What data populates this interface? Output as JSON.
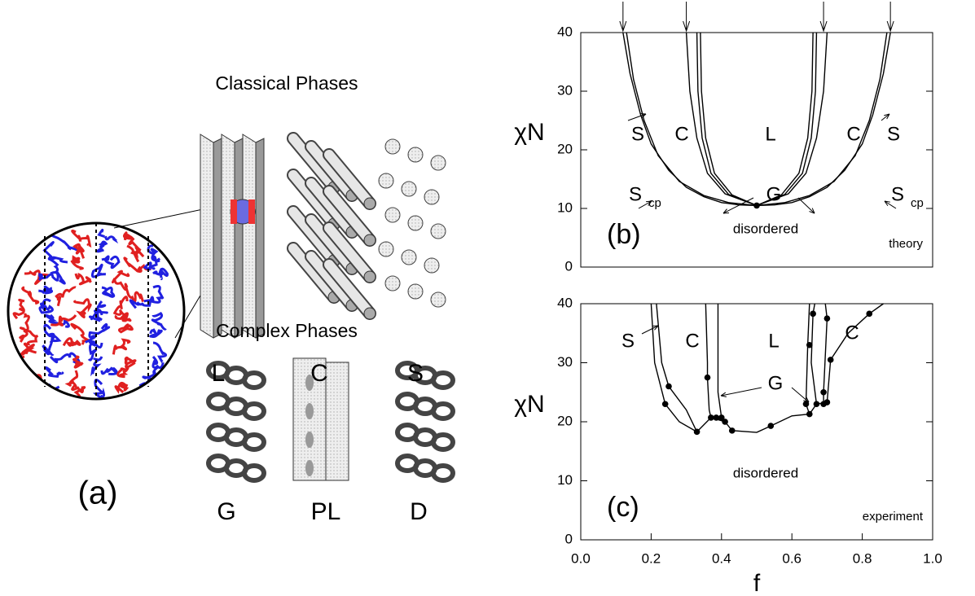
{
  "panel_a": {
    "label": "(a)",
    "classical_title": "Classical Phases",
    "complex_title": "Complex Phases",
    "classical": [
      "L",
      "C",
      "S"
    ],
    "complex": [
      "G",
      "PL",
      "D"
    ]
  },
  "chart_data": [
    {
      "type": "line",
      "panel_label": "(b)",
      "note": "theory",
      "ylabel": "χN",
      "xlim": [
        0,
        1
      ],
      "ylim": [
        0,
        40
      ],
      "yticks": [
        0,
        10,
        20,
        30,
        40
      ],
      "annotations": [
        {
          "text": "S"
        },
        {
          "text": "C"
        },
        {
          "text": "L"
        },
        {
          "text": "C"
        },
        {
          "text": "S"
        },
        {
          "text": "S",
          "sub": "cp"
        },
        {
          "text": "G"
        },
        {
          "text": "S",
          "sub": "cp"
        },
        {
          "text": "disordered"
        }
      ],
      "arrows": {
        "x": [
          0.12,
          0.3,
          0.69,
          0.88
        ]
      },
      "series": [
        {
          "color": "#000000",
          "x": [
            0.12,
            0.14,
            0.17,
            0.2,
            0.25,
            0.3,
            0.35,
            0.4,
            0.45,
            0.5,
            0.55,
            0.6,
            0.65,
            0.7,
            0.75,
            0.8,
            0.83,
            0.86,
            0.88
          ],
          "values": [
            40,
            33,
            26,
            21,
            16.5,
            13.6,
            12,
            11,
            10.6,
            10.5,
            10.6,
            11,
            12,
            13.6,
            16.5,
            21,
            26,
            33,
            40
          ]
        },
        {
          "color": "#000000",
          "x": [
            0.13,
            0.15,
            0.18,
            0.22,
            0.28,
            0.35,
            0.42,
            0.5,
            0.58,
            0.65,
            0.72,
            0.78,
            0.82,
            0.85,
            0.87
          ],
          "values": [
            40,
            32,
            25,
            19,
            14.6,
            12.2,
            11,
            10.5,
            11,
            12.2,
            14.6,
            19,
            25,
            32,
            40
          ]
        },
        {
          "color": "#000000",
          "x": [
            0.3,
            0.31,
            0.33,
            0.36,
            0.41,
            0.5,
            0.59,
            0.64,
            0.67,
            0.69,
            0.7
          ],
          "values": [
            40,
            30,
            22,
            16,
            12.5,
            10.5,
            12.5,
            16,
            22,
            30,
            40
          ]
        },
        {
          "color": "#000000",
          "x": [
            0.33,
            0.333,
            0.345,
            0.37,
            0.42,
            0.5,
            0.58,
            0.63,
            0.655,
            0.667,
            0.67
          ],
          "values": [
            40,
            30,
            22,
            16,
            12.4,
            10.5,
            12.4,
            16,
            22,
            30,
            40
          ]
        },
        {
          "color": "#000000",
          "x": [
            0.34,
            0.343,
            0.355,
            0.38,
            0.43,
            0.5,
            0.57,
            0.62,
            0.645,
            0.657,
            0.66
          ],
          "values": [
            40,
            30,
            22,
            16,
            12.3,
            10.5,
            12.3,
            16,
            22,
            30,
            40
          ]
        }
      ],
      "points": {
        "x": [
          0.5
        ],
        "values": [
          10.5
        ]
      }
    },
    {
      "type": "line",
      "panel_label": "(c)",
      "note": "experiment",
      "ylabel": "χN",
      "xlabel": "f",
      "xlim": [
        0,
        1
      ],
      "ylim": [
        0,
        40
      ],
      "yticks": [
        0,
        10,
        20,
        30,
        40
      ],
      "xticks": [
        {
          "value": 0,
          "label": "0.0"
        },
        0.2,
        0.4,
        0.6,
        0.8,
        {
          "value": 1,
          "label": "1.0"
        }
      ],
      "annotations": [
        {
          "text": "S"
        },
        {
          "text": "C"
        },
        {
          "text": "L"
        },
        {
          "text": "C"
        },
        {
          "text": "G"
        },
        {
          "text": "disordered"
        }
      ],
      "series": [
        {
          "color": "#000000",
          "x": [
            0.2,
            0.21,
            0.24,
            0.28,
            0.33,
            0.37,
            0.41,
            0.43,
            0.5,
            0.54,
            0.6,
            0.65,
            0.67,
            0.7,
            0.71,
            0.76,
            0.82,
            0.86
          ],
          "values": [
            40,
            30,
            23,
            20,
            18.3,
            20.7,
            20,
            18.5,
            18.2,
            19.3,
            21,
            21.3,
            23,
            23.3,
            30.5,
            35,
            38.3,
            40
          ]
        },
        {
          "color": "#000000",
          "x": [
            0.215,
            0.23,
            0.25,
            0.3,
            0.33
          ],
          "values": [
            40,
            30,
            26,
            22,
            18.3
          ]
        },
        {
          "color": "#000000",
          "x": [
            0.355,
            0.36,
            0.36,
            0.365,
            0.37
          ],
          "values": [
            40,
            30,
            27.5,
            22,
            20.7
          ]
        },
        {
          "color": "#000000",
          "x": [
            0.39,
            0.39,
            0.4
          ],
          "values": [
            40,
            25,
            20.7
          ]
        },
        {
          "color": "#000000",
          "x": [
            0.65,
            0.645,
            0.64,
            0.65
          ],
          "values": [
            40,
            33,
            23,
            21.3
          ]
        },
        {
          "color": "#000000",
          "x": [
            0.665,
            0.66,
            0.655,
            0.67
          ],
          "values": [
            40,
            38.3,
            30,
            23
          ]
        },
        {
          "color": "#000000",
          "x": [
            0.695,
            0.7,
            0.69,
            0.69
          ],
          "values": [
            40,
            37.5,
            25,
            23
          ]
        }
      ],
      "points": {
        "x": [
          0.24,
          0.25,
          0.33,
          0.36,
          0.37,
          0.385,
          0.4,
          0.41,
          0.43,
          0.54,
          0.64,
          0.65,
          0.65,
          0.66,
          0.67,
          0.69,
          0.69,
          0.7,
          0.7,
          0.71,
          0.82
        ],
        "values": [
          23,
          26,
          18.3,
          27.5,
          20.7,
          20.7,
          20.7,
          20,
          18.5,
          19.3,
          23,
          21.3,
          33,
          38.3,
          23,
          23,
          25,
          37.5,
          23.3,
          30.5,
          38.3
        ]
      }
    }
  ]
}
